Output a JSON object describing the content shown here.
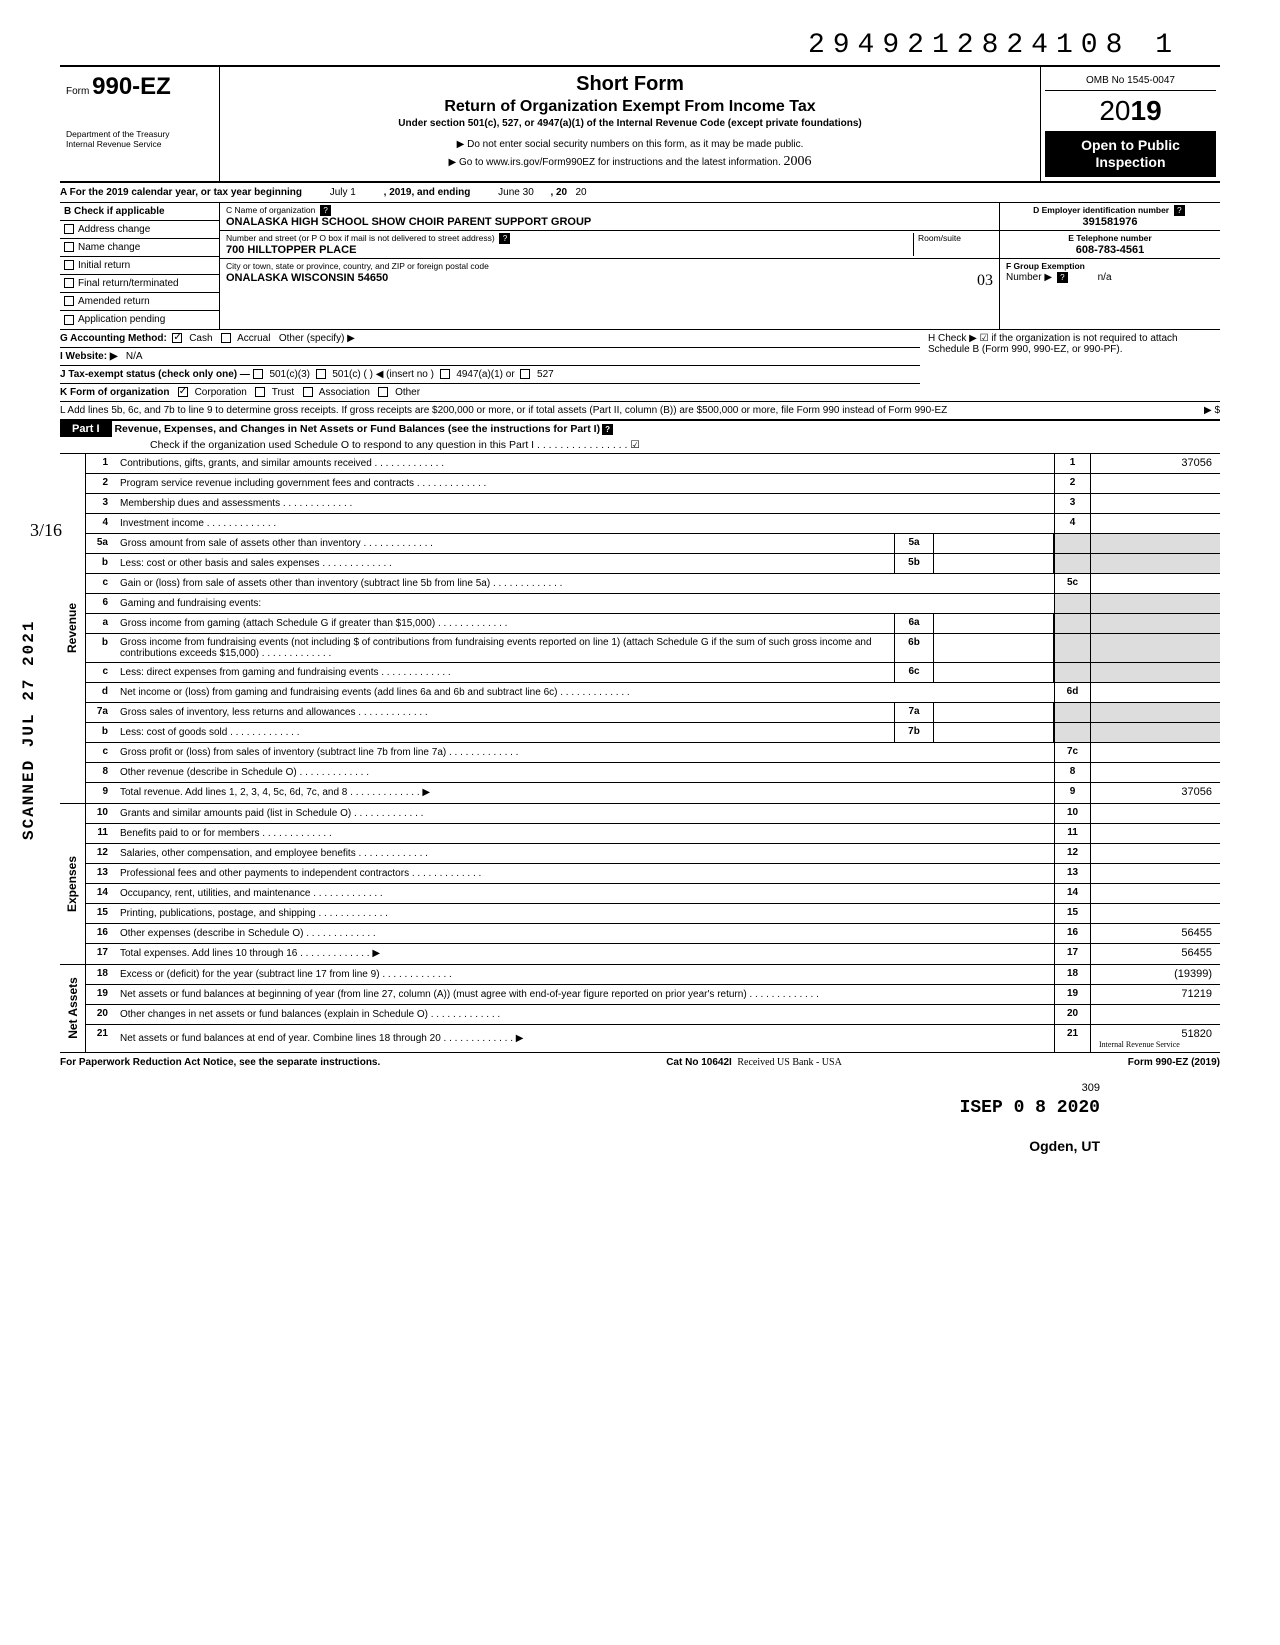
{
  "doc_number": "2949212824108 1",
  "form": {
    "form_label": "Form",
    "form_number": "990-EZ",
    "title": "Short Form",
    "subtitle": "Return of Organization Exempt From Income Tax",
    "under": "Under section 501(c), 527, or 4947(a)(1) of the Internal Revenue Code (except private foundations)",
    "note1": "▶ Do not enter social security numbers on this form, as it may be made public.",
    "note2": "▶ Go to www.irs.gov/Form990EZ for instructions and the latest information.",
    "handwritten_year": "2006",
    "dept": "Department of the Treasury\nInternal Revenue Service",
    "omb": "OMB No 1545-0047",
    "year": "2019",
    "open": "Open to Public Inspection"
  },
  "row_a": {
    "prefix": "A For the 2019 calendar year, or tax year beginning",
    "begin": "July 1",
    "mid": ", 2019, and ending",
    "end": "June 30",
    "suffix": ", 20",
    "yy": "20"
  },
  "section_b": {
    "header": "B  Check if applicable",
    "items": [
      "Address change",
      "Name change",
      "Initial return",
      "Final return/terminated",
      "Amended return",
      "Application pending"
    ]
  },
  "section_c": {
    "name_label": "C  Name of organization",
    "name": "ONALASKA HIGH SCHOOL SHOW CHOIR PARENT SUPPORT GROUP",
    "street_label": "Number and street (or P O  box if mail is not delivered to street address)",
    "room_label": "Room/suite",
    "street": "700 HILLTOPPER PLACE",
    "city_label": "City or town, state or province, country, and ZIP or foreign postal code",
    "city": "ONALASKA WISCONSIN 54650",
    "city_hand": "03"
  },
  "section_d": {
    "ein_label": "D Employer identification number",
    "ein": "391581976",
    "phone_label": "E Telephone number",
    "phone": "608-783-4561",
    "group_label": "F Group Exemption",
    "group2": "Number ▶",
    "group_val": "n/a"
  },
  "row_g": {
    "label": "G Accounting Method:",
    "cash": "Cash",
    "accrual": "Accrual",
    "other": "Other (specify) ▶"
  },
  "row_h": {
    "text": "H Check ▶ ☑ if the organization is not required to attach Schedule B (Form 990, 990-EZ, or 990-PF)."
  },
  "row_i": {
    "label": "I  Website: ▶",
    "val": "N/A"
  },
  "row_j": {
    "label": "J Tax-exempt status (check only one) —",
    "opts": [
      "501(c)(3)",
      "501(c) (        ) ◀ (insert no )",
      "4947(a)(1) or",
      "527"
    ]
  },
  "row_k": {
    "label": "K Form of organization",
    "opts": [
      "Corporation",
      "Trust",
      "Association",
      "Other"
    ]
  },
  "row_l": {
    "text": "L Add lines 5b, 6c, and 7b to line 9 to determine gross receipts. If gross receipts are $200,000 or more, or if total assets (Part II, column (B)) are $500,000 or more, file Form 990 instead of Form 990-EZ",
    "arrow": "▶  $"
  },
  "part1": {
    "label": "Part I",
    "title": "Revenue, Expenses, and Changes in Net Assets or Fund Balances (see the instructions for Part I)",
    "check": "Check if the organization used Schedule O to respond to any question in this Part I",
    "checked": "☑"
  },
  "sections": {
    "revenue": "Revenue",
    "expenses": "Expenses",
    "netassets": "Net Assets"
  },
  "lines": {
    "l1": {
      "n": "1",
      "d": "Contributions, gifts, grants, and similar amounts received",
      "box": "1",
      "v": "37056"
    },
    "l2": {
      "n": "2",
      "d": "Program service revenue including government fees and contracts",
      "box": "2",
      "v": ""
    },
    "l3": {
      "n": "3",
      "d": "Membership dues and assessments",
      "box": "3",
      "v": ""
    },
    "l4": {
      "n": "4",
      "d": "Investment income",
      "box": "4",
      "v": ""
    },
    "l5a": {
      "n": "5a",
      "d": "Gross amount from sale of assets other than inventory",
      "mbox": "5a",
      "mv": ""
    },
    "l5b": {
      "n": "b",
      "d": "Less: cost or other basis and sales expenses",
      "mbox": "5b",
      "mv": ""
    },
    "l5c": {
      "n": "c",
      "d": "Gain or (loss) from sale of assets other than inventory (subtract line 5b from line 5a)",
      "box": "5c",
      "v": ""
    },
    "l6": {
      "n": "6",
      "d": "Gaming and fundraising events:"
    },
    "l6a": {
      "n": "a",
      "d": "Gross income from gaming (attach Schedule G if greater than $15,000)",
      "mbox": "6a",
      "mv": ""
    },
    "l6b": {
      "n": "b",
      "d": "Gross income from fundraising events (not including  $               of contributions from fundraising events reported on line 1) (attach Schedule G if the sum of such gross income and contributions exceeds $15,000)",
      "mbox": "6b",
      "mv": ""
    },
    "l6c": {
      "n": "c",
      "d": "Less: direct expenses from gaming and fundraising events",
      "mbox": "6c",
      "mv": ""
    },
    "l6d": {
      "n": "d",
      "d": "Net income or (loss) from gaming and fundraising events (add lines 6a and 6b and subtract line 6c)",
      "box": "6d",
      "v": ""
    },
    "l7a": {
      "n": "7a",
      "d": "Gross sales of inventory, less returns and allowances",
      "mbox": "7a",
      "mv": ""
    },
    "l7b": {
      "n": "b",
      "d": "Less: cost of goods sold",
      "mbox": "7b",
      "mv": ""
    },
    "l7c": {
      "n": "c",
      "d": "Gross profit or (loss) from sales of inventory (subtract line 7b from line 7a)",
      "box": "7c",
      "v": ""
    },
    "l8": {
      "n": "8",
      "d": "Other revenue (describe in Schedule O)",
      "box": "8",
      "v": ""
    },
    "l9": {
      "n": "9",
      "d": "Total revenue. Add lines 1, 2, 3, 4, 5c, 6d, 7c, and 8",
      "box": "9",
      "v": "37056",
      "arrow": "▶"
    },
    "l10": {
      "n": "10",
      "d": "Grants and similar amounts paid (list in Schedule O)",
      "box": "10",
      "v": ""
    },
    "l11": {
      "n": "11",
      "d": "Benefits paid to or for members",
      "box": "11",
      "v": ""
    },
    "l12": {
      "n": "12",
      "d": "Salaries, other compensation, and employee benefits",
      "box": "12",
      "v": ""
    },
    "l13": {
      "n": "13",
      "d": "Professional fees and other payments to independent contractors",
      "box": "13",
      "v": ""
    },
    "l14": {
      "n": "14",
      "d": "Occupancy, rent, utilities, and maintenance",
      "box": "14",
      "v": ""
    },
    "l15": {
      "n": "15",
      "d": "Printing, publications, postage, and shipping",
      "box": "15",
      "v": ""
    },
    "l16": {
      "n": "16",
      "d": "Other expenses (describe in Schedule O)",
      "box": "16",
      "v": "56455"
    },
    "l17": {
      "n": "17",
      "d": "Total expenses. Add lines 10 through 16",
      "box": "17",
      "v": "56455",
      "arrow": "▶"
    },
    "l18": {
      "n": "18",
      "d": "Excess or (deficit) for the year (subtract line 17 from line 9)",
      "box": "18",
      "v": "(19399)"
    },
    "l19": {
      "n": "19",
      "d": "Net assets or fund balances at beginning of year (from line 27, column (A)) (must agree with end-of-year figure reported on prior year's return)",
      "box": "19",
      "v": "71219"
    },
    "l20": {
      "n": "20",
      "d": "Other changes in net assets or fund balances (explain in Schedule O)",
      "box": "20",
      "v": ""
    },
    "l21": {
      "n": "21",
      "d": "Net assets or fund balances at end of year. Combine lines 18 through 20",
      "box": "21",
      "v": "51820",
      "arrow": "▶",
      "stamp": "Internal Revenue Service"
    }
  },
  "footer": {
    "left": "For Paperwork Reduction Act Notice, see the separate instructions.",
    "mid": "Cat No 10642I",
    "right": "Form 990-EZ (2019)",
    "received_stamp": "Received US Bank - USA",
    "num309": "309"
  },
  "stamps": {
    "date_label": "ISEP 0 8 2020",
    "ogden": "Ogden, UT",
    "scanned": "SCANNED JUL 27 2021",
    "fraction": "3/16"
  }
}
